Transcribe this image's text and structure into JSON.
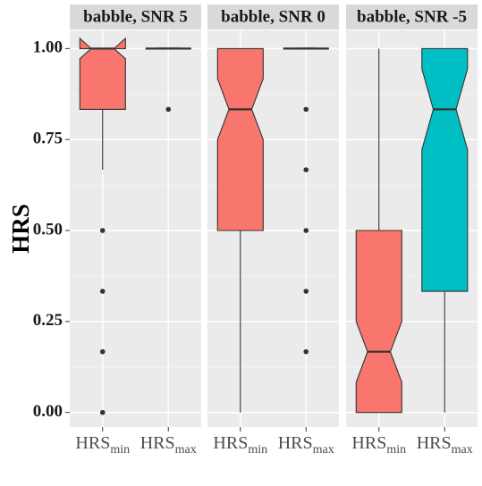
{
  "chart_data": {
    "type": "boxplot",
    "ylabel": "HRS",
    "xlabel": "",
    "ylim": [
      -0.04,
      1.05
    ],
    "y_ticks": [
      "0.00",
      "0.25",
      "0.50",
      "0.75",
      "1.00"
    ],
    "notched": true,
    "facets": [
      {
        "title": "babble, SNR 5",
        "boxes": [
          {
            "label_base": "HRS",
            "label_sub": "min",
            "fill": "#F8766D",
            "q1": 0.833,
            "median": 1.0,
            "q3": 1.0,
            "whisker_low": 0.667,
            "whisker_high": 1.0,
            "notch_low": 0.972,
            "notch_high": 1.028,
            "outliers": [
              0.5,
              0.333,
              0.167,
              0.0
            ]
          },
          {
            "label_base": "HRS",
            "label_sub": "max",
            "fill": "#00BFC4",
            "q1": 1.0,
            "median": 1.0,
            "q3": 1.0,
            "whisker_low": 1.0,
            "whisker_high": 1.0,
            "notch_low": 1.0,
            "notch_high": 1.0,
            "outliers": [
              0.833
            ]
          }
        ]
      },
      {
        "title": "babble, SNR 0",
        "boxes": [
          {
            "label_base": "HRS",
            "label_sub": "min",
            "fill": "#F8766D",
            "q1": 0.5,
            "median": 0.833,
            "q3": 1.0,
            "whisker_low": 0.0,
            "whisker_high": 1.0,
            "notch_low": 0.75,
            "notch_high": 0.917,
            "outliers": []
          },
          {
            "label_base": "HRS",
            "label_sub": "max",
            "fill": "#00BFC4",
            "q1": 1.0,
            "median": 1.0,
            "q3": 1.0,
            "whisker_low": 1.0,
            "whisker_high": 1.0,
            "notch_low": 1.0,
            "notch_high": 1.0,
            "outliers": [
              0.833,
              0.667,
              0.5,
              0.333,
              0.167
            ]
          }
        ]
      },
      {
        "title": "babble, SNR -5",
        "boxes": [
          {
            "label_base": "HRS",
            "label_sub": "min",
            "fill": "#F8766D",
            "q1": 0.0,
            "median": 0.167,
            "q3": 0.5,
            "whisker_low": 0.0,
            "whisker_high": 1.0,
            "notch_low": 0.083,
            "notch_high": 0.25,
            "outliers": []
          },
          {
            "label_base": "HRS",
            "label_sub": "max",
            "fill": "#00BFC4",
            "q1": 0.333,
            "median": 0.833,
            "q3": 1.0,
            "whisker_low": 0.0,
            "whisker_high": 1.0,
            "notch_low": 0.722,
            "notch_high": 0.944,
            "outliers": []
          }
        ]
      }
    ]
  },
  "colors": {
    "panel_bg": "#EBEBEB",
    "strip_bg": "#D9D9D9",
    "grid_major": "#FFFFFF",
    "grid_minor": "#F5F5F5",
    "box_outline": "#333333",
    "outlier": "#333333"
  }
}
